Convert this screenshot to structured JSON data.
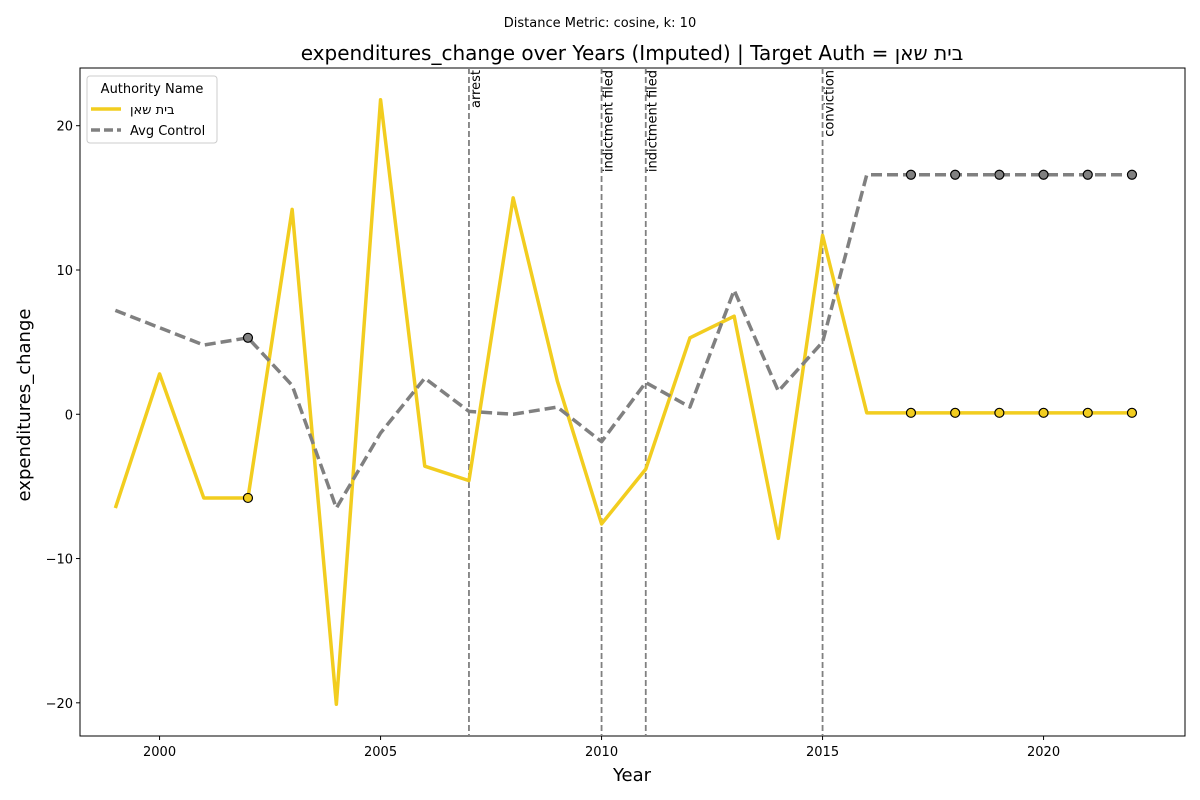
{
  "chart_data": {
    "type": "line",
    "suptitle": "Distance Metric: cosine, k: 10",
    "title": "expenditures_change over Years (Imputed) | Target Auth = בית שאן",
    "xlabel": "Year",
    "ylabel": "expenditures_change",
    "xlim": [
      1998.2,
      2023.2
    ],
    "ylim": [
      -22.3,
      24.0
    ],
    "xticks": [
      2000,
      2005,
      2010,
      2015,
      2020
    ],
    "yticks": [
      -20,
      -10,
      0,
      10,
      20
    ],
    "grid": false,
    "legend": {
      "title": "Authority Name",
      "placement": "top-left"
    },
    "series": [
      {
        "name": "בית שאן",
        "color": "#f2cd1f",
        "style": "solid",
        "x": [
          1999,
          2000,
          2001,
          2002,
          2003,
          2004,
          2005,
          2006,
          2007,
          2008,
          2009,
          2010,
          2011,
          2012,
          2013,
          2014,
          2015,
          2016,
          2017,
          2018,
          2019,
          2020,
          2021,
          2022
        ],
        "values": [
          -6.5,
          2.8,
          -5.8,
          -5.8,
          14.2,
          -20.1,
          21.8,
          -3.6,
          -4.6,
          15.0,
          2.3,
          -7.6,
          -3.8,
          5.3,
          6.8,
          -8.6,
          12.4,
          0.1,
          0.1,
          0.1,
          0.1,
          0.1,
          0.1,
          0.1
        ],
        "imputed_x": [
          2002,
          2017,
          2018,
          2019,
          2020,
          2021,
          2022
        ]
      },
      {
        "name": "Avg Control",
        "color": "#808080",
        "style": "dashed",
        "x": [
          1999,
          2000,
          2001,
          2002,
          2003,
          2004,
          2005,
          2006,
          2007,
          2008,
          2009,
          2010,
          2011,
          2012,
          2013,
          2014,
          2015,
          2016,
          2017,
          2018,
          2019,
          2020,
          2021,
          2022
        ],
        "values": [
          7.2,
          6.0,
          4.8,
          5.3,
          2.0,
          -6.5,
          -1.3,
          2.5,
          0.2,
          0.0,
          0.5,
          -1.9,
          2.2,
          0.5,
          8.6,
          1.6,
          5.0,
          16.6,
          16.6,
          16.6,
          16.6,
          16.6,
          16.6,
          16.6
        ],
        "imputed_x": [
          2002,
          2017,
          2018,
          2019,
          2020,
          2021,
          2022
        ]
      }
    ],
    "events": [
      {
        "x": 2007,
        "label": "arrest"
      },
      {
        "x": 2010,
        "label": "indictment filed"
      },
      {
        "x": 2011,
        "label": "indictment filed"
      },
      {
        "x": 2015,
        "label": "conviction"
      }
    ]
  }
}
